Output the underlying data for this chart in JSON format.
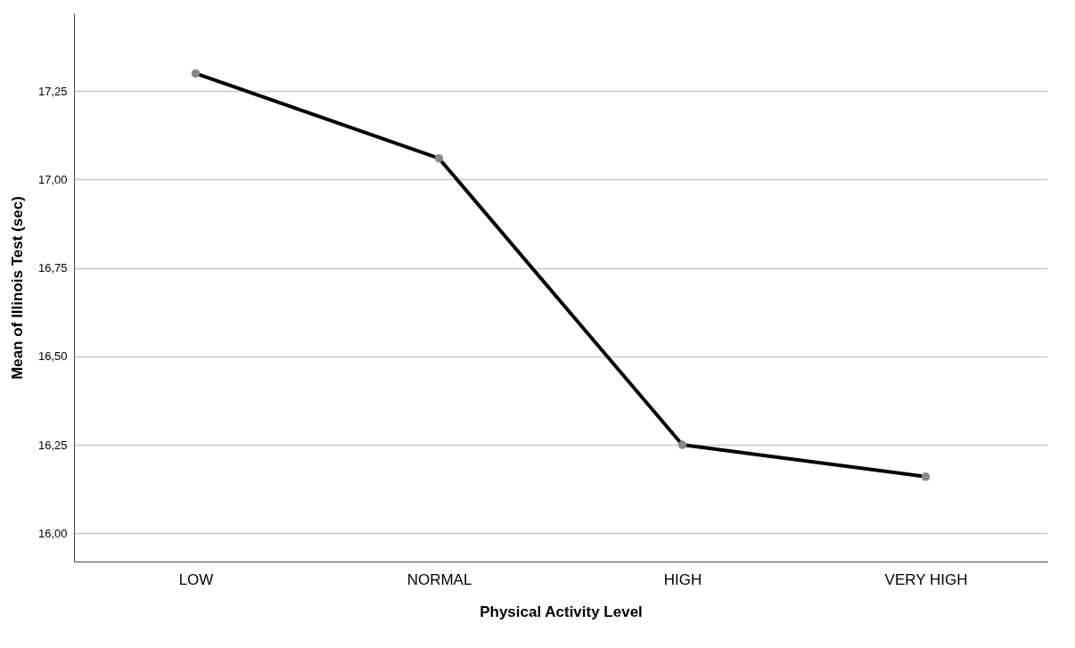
{
  "chart_data": {
    "type": "line",
    "xlabel": "Physical Activity Level",
    "ylabel": "Mean of Illinois Test (sec)",
    "categories": [
      "LOW",
      "NORMAL",
      "HIGH",
      "VERY HIGH"
    ],
    "series": [
      {
        "color": "#000000",
        "values": [
          17.3,
          17.06,
          16.25,
          16.16
        ]
      }
    ],
    "ylim": [
      15.92,
      17.47
    ],
    "yticks": [
      {
        "value": 16.0,
        "label": "16,00"
      },
      {
        "value": 16.25,
        "label": "16,25"
      },
      {
        "value": 16.5,
        "label": "16,50"
      },
      {
        "value": 16.75,
        "label": "16,75"
      },
      {
        "value": 17.0,
        "label": "17,00"
      },
      {
        "value": 17.25,
        "label": "17,25"
      }
    ],
    "grid": "y",
    "marker": "circle"
  }
}
